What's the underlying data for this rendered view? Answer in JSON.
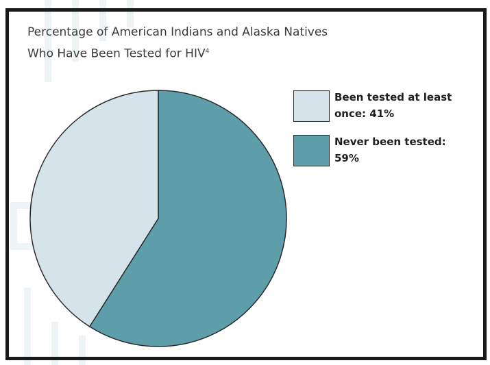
{
  "chart_data": {
    "type": "pie",
    "title_lines": [
      "Percentage of American Indians and Alaska Natives",
      "Who Have Been Tested for HIV"
    ],
    "title_footnote": "4",
    "slices": [
      {
        "label": "Been tested at least once",
        "value": 41,
        "color": "#d5e3ea"
      },
      {
        "label": "Never been tested",
        "value": 59,
        "color": "#5e9daa"
      }
    ],
    "legend": {
      "placement": "right",
      "items": [
        {
          "lines": [
            "Been tested at least",
            "once: 41%"
          ],
          "color": "#d5e3ea"
        },
        {
          "lines": [
            "Never been tested:",
            "59%"
          ],
          "color": "#5e9daa"
        }
      ]
    }
  }
}
